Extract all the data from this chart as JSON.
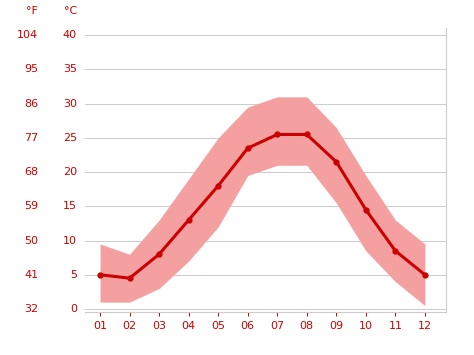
{
  "months": [
    1,
    2,
    3,
    4,
    5,
    6,
    7,
    8,
    9,
    10,
    11,
    12
  ],
  "month_labels": [
    "01",
    "02",
    "03",
    "04",
    "05",
    "06",
    "07",
    "08",
    "09",
    "10",
    "11",
    "12"
  ],
  "mean_c": [
    5.0,
    4.5,
    8.0,
    13.0,
    18.0,
    23.5,
    25.5,
    25.5,
    21.5,
    14.5,
    8.5,
    5.0
  ],
  "max_c": [
    9.5,
    8.0,
    13.0,
    19.0,
    25.0,
    29.5,
    31.0,
    31.0,
    26.5,
    19.5,
    13.0,
    9.5
  ],
  "min_c": [
    1.0,
    1.0,
    3.0,
    7.0,
    12.0,
    19.5,
    21.0,
    21.0,
    15.5,
    8.5,
    4.0,
    0.5
  ],
  "mean_color": "#cc0000",
  "band_color": "#f4a0a0",
  "line_width": 2.2,
  "yticks_c": [
    0,
    5,
    10,
    15,
    20,
    25,
    30,
    35,
    40
  ],
  "yticks_f": [
    32,
    41,
    50,
    59,
    68,
    77,
    86,
    95,
    104
  ],
  "ylim_c": [
    -0.5,
    41
  ],
  "background_color": "#ffffff",
  "grid_color": "#cccccc",
  "tick_label_color": "#cc0000",
  "left_ylabel_f": "°F",
  "left_ylabel_c": "°C",
  "label_fontsize": 8,
  "tick_fontsize": 8
}
